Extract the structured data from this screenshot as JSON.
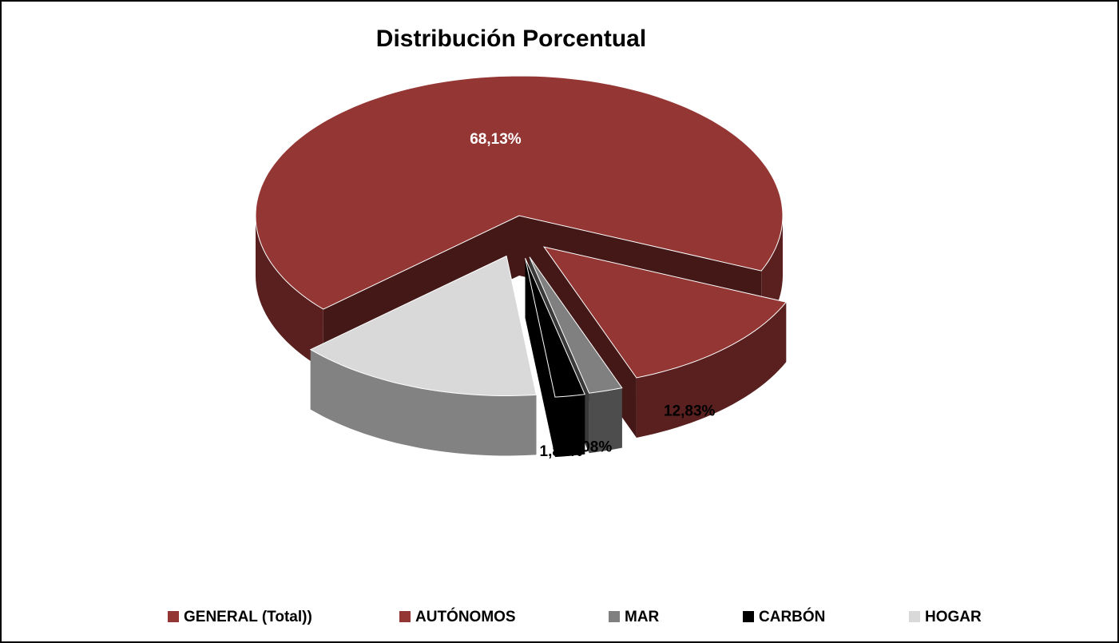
{
  "chart_data": {
    "type": "pie3d",
    "title": "Distribución Porcentual",
    "categories": [
      "GENERAL (Total))",
      "AUTÓNOMOS",
      "MAR",
      "CARBÓN",
      "HOGAR"
    ],
    "values": [
      68.13,
      12.83,
      2.08,
      1.82,
      15.14
    ],
    "value_labels": [
      "68,13%",
      "12,83%",
      "2,08%",
      "1,82%",
      null
    ],
    "colors": [
      "#943634",
      "#943634",
      "#808080",
      "#000000",
      "#d9d9d9"
    ],
    "legend": "bottom"
  }
}
